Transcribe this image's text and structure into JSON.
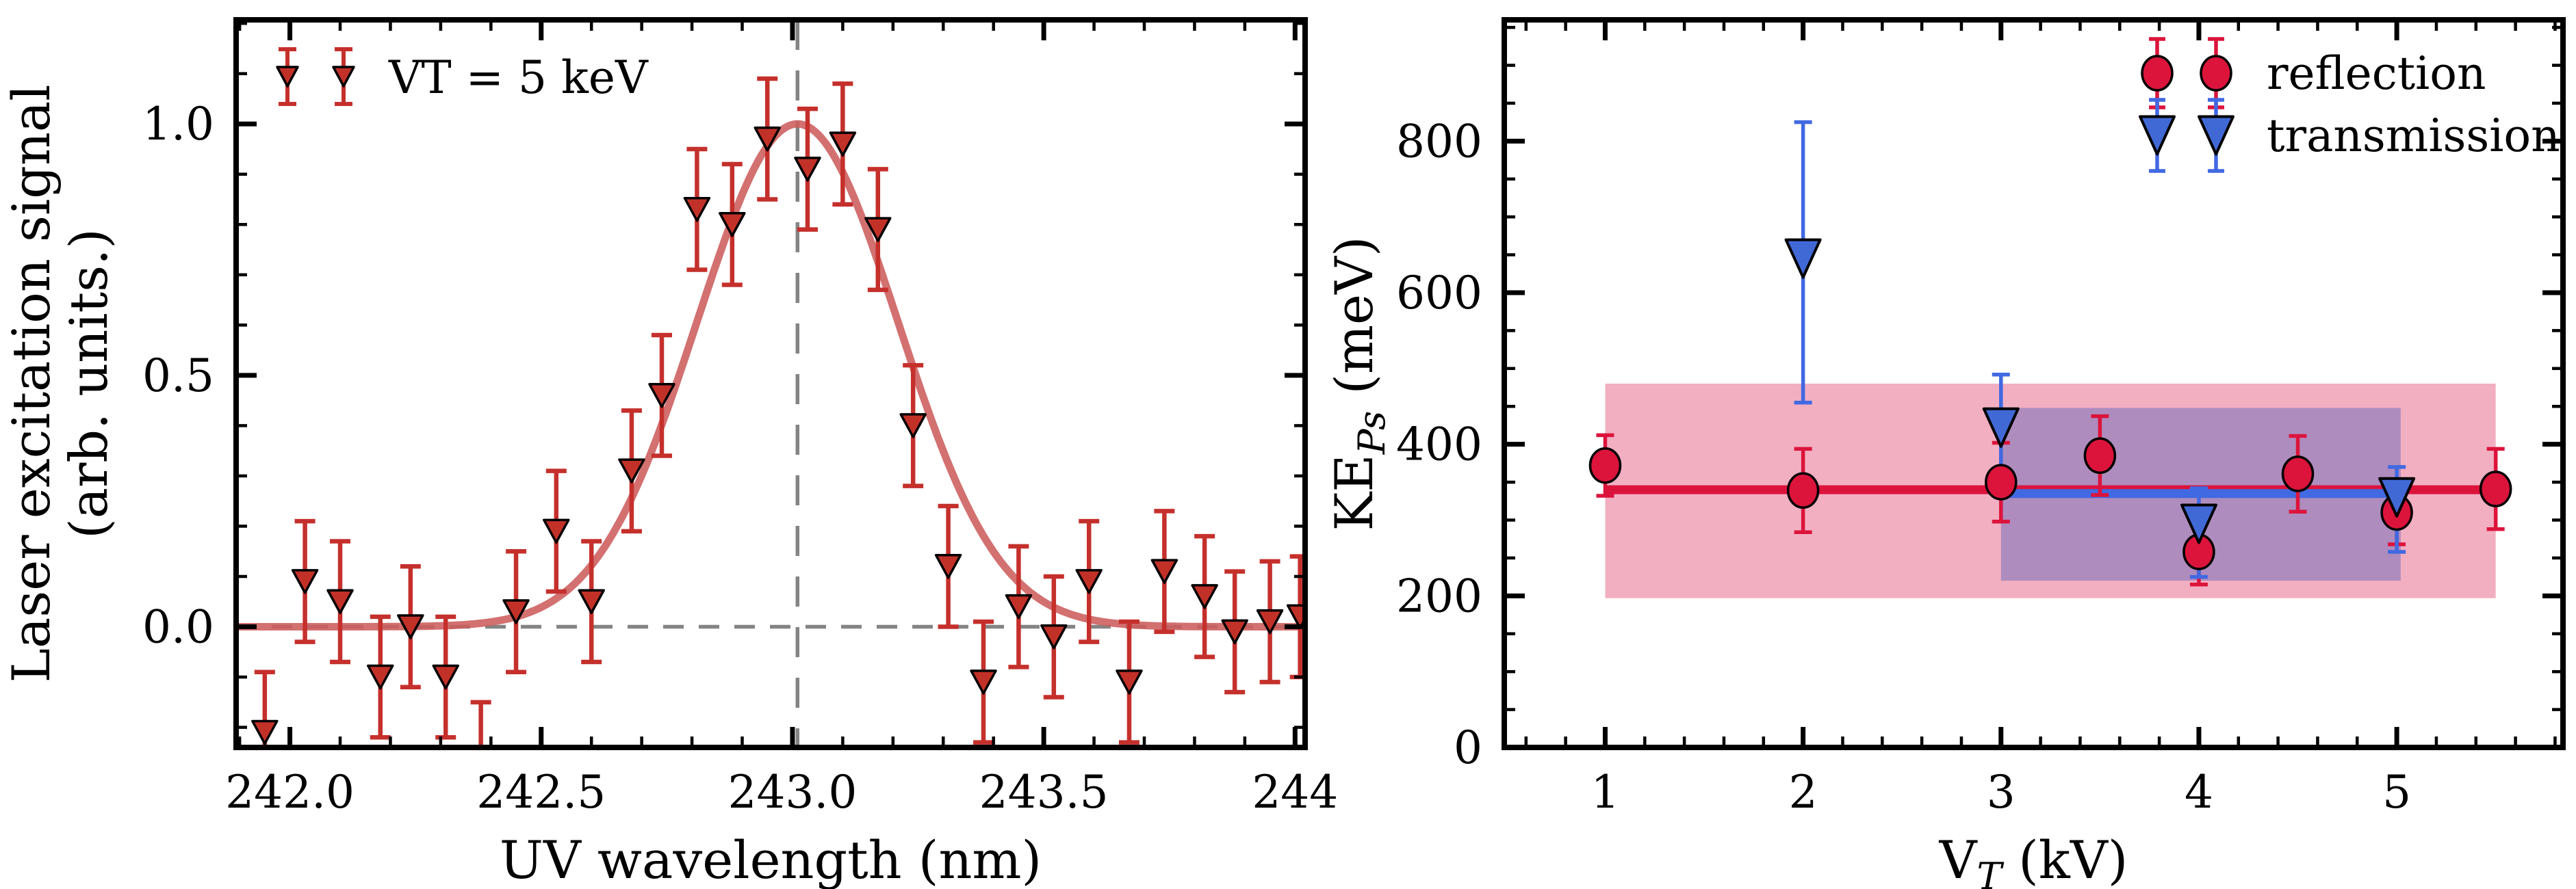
{
  "chart_data": [
    {
      "type": "scatter",
      "panel": "left",
      "xlabel": "UV wavelength (nm)",
      "ylabel_line1": "Laser excitation signal",
      "ylabel_line2": "(arb. units.)",
      "legend": [
        {
          "label": "VT = 5 keV",
          "marker": "triangle-down"
        }
      ],
      "xlim": [
        241.893,
        244.02
      ],
      "ylim": [
        -0.24,
        1.207
      ],
      "xticks": {
        "values": [
          242.0,
          242.5,
          243.0,
          243.5,
          244.0
        ],
        "labels": [
          "242.0",
          "242.5",
          "243.0",
          "243.5",
          "244"
        ],
        "minor_step": 0.1
      },
      "yticks": {
        "values": [
          0.0,
          0.5,
          1.0
        ],
        "labels": [
          "0.0",
          "0.5",
          "1.0"
        ],
        "minor_step": 0.1
      },
      "series": [
        {
          "name": "VT = 5 keV",
          "marker": "triangle-down",
          "color": "#c23128",
          "error_color": "#c5302c",
          "x": [
            241.95,
            242.03,
            242.1,
            242.18,
            242.24,
            242.31,
            242.38,
            242.45,
            242.53,
            242.6,
            242.68,
            242.74,
            242.81,
            242.88,
            242.95,
            243.03,
            243.1,
            243.17,
            243.24,
            243.31,
            243.38,
            243.45,
            243.52,
            243.59,
            243.67,
            243.74,
            243.82,
            243.88,
            243.95,
            244.01
          ],
          "y": [
            -0.21,
            0.09,
            0.05,
            -0.1,
            0.0,
            -0.1,
            -0.27,
            0.03,
            0.19,
            0.05,
            0.31,
            0.46,
            0.83,
            0.8,
            0.97,
            0.91,
            0.96,
            0.79,
            0.4,
            0.12,
            -0.11,
            0.04,
            -0.02,
            0.09,
            -0.11,
            0.11,
            0.06,
            -0.01,
            0.01,
            0.02
          ],
          "yerr": 0.12
        }
      ],
      "fit_curve": {
        "type": "gaussian",
        "center": 243.01,
        "sigma": 0.2,
        "amplitude": 1.0,
        "baseline": 0.0,
        "color": "#cd5c5c"
      },
      "reference_lines": {
        "horizontal_y": 0.0,
        "vertical_x": 243.01,
        "color": "#848484",
        "style": "dashed"
      }
    },
    {
      "type": "scatter",
      "panel": "right",
      "xlabel_pre": "V",
      "xlabel_sub": "T",
      "xlabel_post": " (kV)",
      "ylabel_pre": "KE",
      "ylabel_sub": "Ps",
      "ylabel_post": " (meV)",
      "xlim": [
        0.49,
        5.84
      ],
      "ylim": [
        0,
        960
      ],
      "xticks": {
        "values": [
          1,
          2,
          3,
          4,
          5
        ],
        "labels": [
          "1",
          "2",
          "3",
          "4",
          "5"
        ],
        "minor_step": 0.2
      },
      "yticks": {
        "values": [
          0,
          200,
          400,
          600,
          800
        ],
        "labels": [
          "0",
          "200",
          "400",
          "600",
          "800"
        ],
        "minor_step": 50
      },
      "series": [
        {
          "name": "reflection",
          "marker": "ellipse",
          "color": "#dc143c",
          "error_color": "#dc143c",
          "x": [
            1,
            2,
            3,
            3.5,
            4,
            4.5,
            5,
            5.5
          ],
          "y": [
            372,
            339,
            350,
            385,
            258,
            361,
            310,
            341
          ],
          "yerr": [
            40,
            55,
            52,
            52,
            43,
            50,
            42,
            53
          ],
          "mean_line": {
            "y": 340,
            "x_start": 1.0,
            "x_end": 5.5
          },
          "band": {
            "x_start": 1.0,
            "x_end": 5.5,
            "y_low": 197,
            "y_high": 480
          }
        },
        {
          "name": "transmission",
          "marker": "triangle-down",
          "color": "#4169d6",
          "error_color": "#4169e1",
          "x": [
            2,
            3,
            4,
            5
          ],
          "y": [
            645,
            422,
            295,
            330
          ],
          "yerr_up": [
            180,
            70,
            47,
            40
          ],
          "yerr_down": [
            190,
            79,
            70,
            72
          ],
          "mean_line": {
            "y": 335,
            "x_start": 3.0,
            "x_end": 5.05
          },
          "band": {
            "x_start": 3.0,
            "x_end": 5.02,
            "y_low": 220,
            "y_high": 448
          }
        }
      ]
    }
  ],
  "colors": {
    "pink_band": "rgba(222,45,95,0.38)",
    "blue_band": "rgba(65,85,185,0.38)",
    "spine": "#000000",
    "dashed": "#848484",
    "background": "#ffffff"
  }
}
